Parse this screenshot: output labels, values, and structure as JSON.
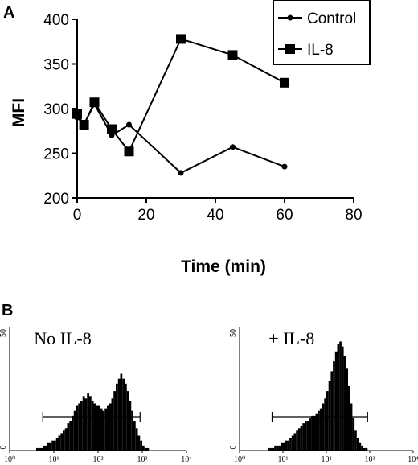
{
  "panels": {
    "a_label": "A",
    "b_label": "B"
  },
  "chart_data": [
    {
      "type": "line",
      "xlabel": "Time (min)",
      "ylabel": "MFI",
      "xlim": [
        0,
        80
      ],
      "ylim": [
        200,
        400
      ],
      "x_ticks": [
        "0",
        "20",
        "40",
        "60",
        "80"
      ],
      "y_ticks": [
        "200",
        "250",
        "300",
        "350",
        "400"
      ],
      "legend_position": "top-right",
      "series": [
        {
          "name": "Control",
          "marker": "circle",
          "x": [
            0,
            2,
            5,
            10,
            15,
            30,
            45,
            60
          ],
          "y": [
            290,
            283,
            305,
            270,
            282,
            228,
            257,
            235
          ]
        },
        {
          "name": "IL-8",
          "marker": "square",
          "x": [
            0,
            2,
            5,
            10,
            15,
            30,
            45,
            60
          ],
          "y": [
            294,
            282,
            307,
            277,
            252,
            378,
            360,
            329
          ]
        }
      ]
    },
    {
      "type": "histogram",
      "label": "No IL-8",
      "y_top_tick": "50",
      "y_bottom_tick": "0",
      "x_ticks": [
        "10⁰",
        "10¹",
        "10²",
        "10³",
        "10⁴"
      ],
      "gate_log_range": [
        0.75,
        2.95
      ],
      "bins_log_range": [
        0.55,
        3.35
      ],
      "counts": [
        0,
        1,
        1,
        1,
        2,
        2,
        3,
        3,
        4,
        4,
        5,
        6,
        7,
        8,
        9,
        11,
        12,
        14,
        16,
        18,
        19,
        20,
        22,
        21,
        23,
        22,
        20,
        19,
        18,
        18,
        17,
        16,
        17,
        18,
        19,
        21,
        24,
        27,
        29,
        31,
        29,
        27,
        24,
        20,
        16,
        12,
        9,
        6,
        4,
        2,
        1,
        1,
        0,
        0,
        0,
        0
      ]
    },
    {
      "type": "histogram",
      "label": "+ IL-8",
      "y_top_tick": "50",
      "y_bottom_tick": "0",
      "x_ticks": [
        "10⁰",
        "10¹",
        "10²",
        "10³",
        "10⁴"
      ],
      "gate_log_range": [
        0.75,
        2.95
      ],
      "bins_log_range": [
        0.55,
        3.35
      ],
      "counts": [
        0,
        0,
        1,
        1,
        1,
        2,
        2,
        2,
        3,
        3,
        4,
        4,
        5,
        6,
        7,
        8,
        9,
        10,
        11,
        12,
        12,
        13,
        14,
        14,
        15,
        16,
        17,
        19,
        21,
        24,
        28,
        32,
        36,
        40,
        43,
        44,
        42,
        38,
        33,
        26,
        19,
        13,
        8,
        5,
        3,
        2,
        1,
        1,
        0,
        0,
        0,
        0,
        0,
        0,
        0,
        0
      ]
    }
  ]
}
